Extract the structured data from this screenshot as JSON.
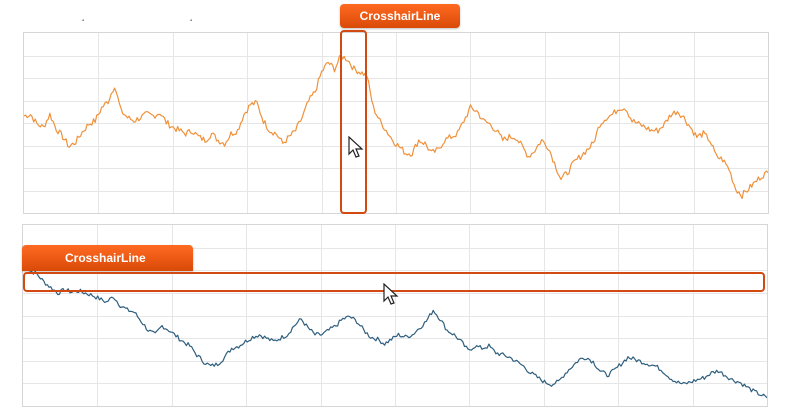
{
  "badges": {
    "top": "CrosshairLine",
    "bottom": "CrosshairLine"
  },
  "colors": {
    "top_series": "#f0913a",
    "bottom_series": "#2e5e7e",
    "grid": "#e6e6e6",
    "highlight": "#d24a12"
  },
  "icons": [
    "pointer-cursor-icon",
    "pointer-cursor-icon"
  ],
  "chart_data": [
    {
      "type": "line",
      "grid": true,
      "series": [
        {
          "values": [
            55,
            56,
            50,
            48,
            56,
            47,
            42,
            36,
            39,
            45,
            50,
            52,
            60,
            64,
            74,
            58,
            54,
            52,
            54,
            56,
            55,
            57,
            51,
            48,
            46,
            44,
            46,
            42,
            40,
            44,
            40,
            38,
            44,
            46,
            56,
            62,
            63,
            52,
            46,
            44,
            38,
            42,
            46,
            54,
            64,
            70,
            82,
            88,
            84,
            92,
            90,
            84,
            82,
            80,
            60,
            52,
            46,
            40,
            36,
            32,
            32,
            40,
            38,
            32,
            34,
            40,
            42,
            44,
            52,
            60,
            58,
            52,
            50,
            46,
            40,
            42,
            42,
            36,
            30,
            34,
            40,
            36,
            26,
            16,
            20,
            26,
            30,
            34,
            38,
            50,
            54,
            56,
            60,
            60,
            52,
            50,
            48,
            46,
            46,
            50,
            56,
            58,
            54,
            48,
            42,
            44,
            40,
            30,
            28,
            22,
            10,
            6,
            10,
            14,
            18,
            20
          ]
        }
      ]
    },
    {
      "type": "line",
      "grid": true,
      "series": [
        {
          "values": [
            120,
            115,
            112,
            105,
            100,
            95,
            98,
            96,
            97,
            95,
            93,
            90,
            87,
            92,
            84,
            80,
            78,
            70,
            62,
            58,
            66,
            62,
            57,
            52,
            48,
            40,
            34,
            30,
            32,
            38,
            46,
            48,
            52,
            56,
            58,
            55,
            52,
            55,
            58,
            66,
            72,
            64,
            58,
            58,
            62,
            66,
            72,
            74,
            70,
            62,
            56,
            54,
            50,
            54,
            58,
            56,
            58,
            64,
            70,
            80,
            72,
            62,
            58,
            52,
            44,
            48,
            46,
            48,
            42,
            40,
            38,
            34,
            30,
            24,
            20,
            16,
            14,
            16,
            24,
            30,
            36,
            38,
            34,
            26,
            22,
            26,
            32,
            38,
            36,
            34,
            32,
            30,
            26,
            20,
            16,
            14,
            16,
            18,
            20,
            24,
            26,
            22,
            18,
            16,
            12,
            8,
            5,
            2
          ]
        }
      ]
    }
  ]
}
